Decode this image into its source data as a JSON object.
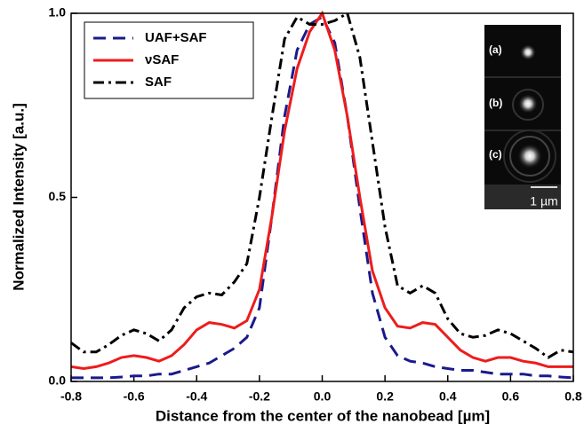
{
  "chart_data": {
    "type": "line",
    "xlabel": "Distance from the center of the nanobead [µm]",
    "ylabel": "Normalized Intensity [a.u.]",
    "x": [
      -0.8,
      -0.76,
      -0.72,
      -0.68,
      -0.64,
      -0.6,
      -0.56,
      -0.52,
      -0.48,
      -0.44,
      -0.4,
      -0.36,
      -0.32,
      -0.28,
      -0.24,
      -0.2,
      -0.16,
      -0.12,
      -0.08,
      -0.04,
      0,
      0.04,
      0.08,
      0.12,
      0.16,
      0.2,
      0.24,
      0.28,
      0.32,
      0.36,
      0.4,
      0.44,
      0.48,
      0.52,
      0.56,
      0.6,
      0.64,
      0.68,
      0.72,
      0.76,
      0.8
    ],
    "series": [
      {
        "name": "UAF+SAF",
        "color": "#1a1a8c",
        "dash": "dashed",
        "values": [
          0.01,
          0.01,
          0.01,
          0.01,
          0.012,
          0.015,
          0.015,
          0.02,
          0.02,
          0.03,
          0.04,
          0.05,
          0.07,
          0.09,
          0.12,
          0.2,
          0.45,
          0.72,
          0.9,
          0.97,
          0.99,
          0.92,
          0.72,
          0.47,
          0.24,
          0.12,
          0.07,
          0.055,
          0.05,
          0.04,
          0.035,
          0.03,
          0.03,
          0.025,
          0.02,
          0.02,
          0.02,
          0.015,
          0.015,
          0.012,
          0.01
        ]
      },
      {
        "name": "νSAF",
        "color": "#ee1c1c",
        "dash": "solid",
        "values": [
          0.04,
          0.035,
          0.04,
          0.05,
          0.065,
          0.07,
          0.065,
          0.055,
          0.07,
          0.1,
          0.14,
          0.16,
          0.155,
          0.145,
          0.165,
          0.25,
          0.45,
          0.68,
          0.85,
          0.95,
          1.0,
          0.9,
          0.72,
          0.5,
          0.3,
          0.2,
          0.15,
          0.145,
          0.16,
          0.155,
          0.12,
          0.085,
          0.065,
          0.055,
          0.065,
          0.065,
          0.055,
          0.05,
          0.04,
          0.04,
          0.04
        ]
      },
      {
        "name": "SAF",
        "color": "#000000",
        "dash": "dashdot",
        "values": [
          0.105,
          0.08,
          0.08,
          0.1,
          0.125,
          0.14,
          0.13,
          0.11,
          0.14,
          0.2,
          0.23,
          0.24,
          0.235,
          0.27,
          0.32,
          0.5,
          0.72,
          0.93,
          0.99,
          0.97,
          0.97,
          0.98,
          1.0,
          0.88,
          0.65,
          0.42,
          0.26,
          0.24,
          0.26,
          0.24,
          0.17,
          0.13,
          0.12,
          0.125,
          0.14,
          0.13,
          0.11,
          0.09,
          0.065,
          0.085,
          0.08
        ]
      }
    ],
    "xlim": [
      -0.8,
      0.8
    ],
    "ylim": [
      0,
      1
    ],
    "xticks": [
      -0.8,
      -0.6,
      -0.4,
      -0.2,
      {
        "value": 0,
        "label": "0.0"
      },
      0.2,
      0.4,
      0.6,
      0.8
    ],
    "yticks": [
      {
        "value": 0,
        "label": "0.0"
      },
      0.5,
      {
        "value": 1,
        "label": "1.0"
      }
    ],
    "legend": "upper left",
    "inset_labels": [
      "(a)",
      "(b)",
      "(c)"
    ],
    "scale_bar_label": "1 µm"
  }
}
